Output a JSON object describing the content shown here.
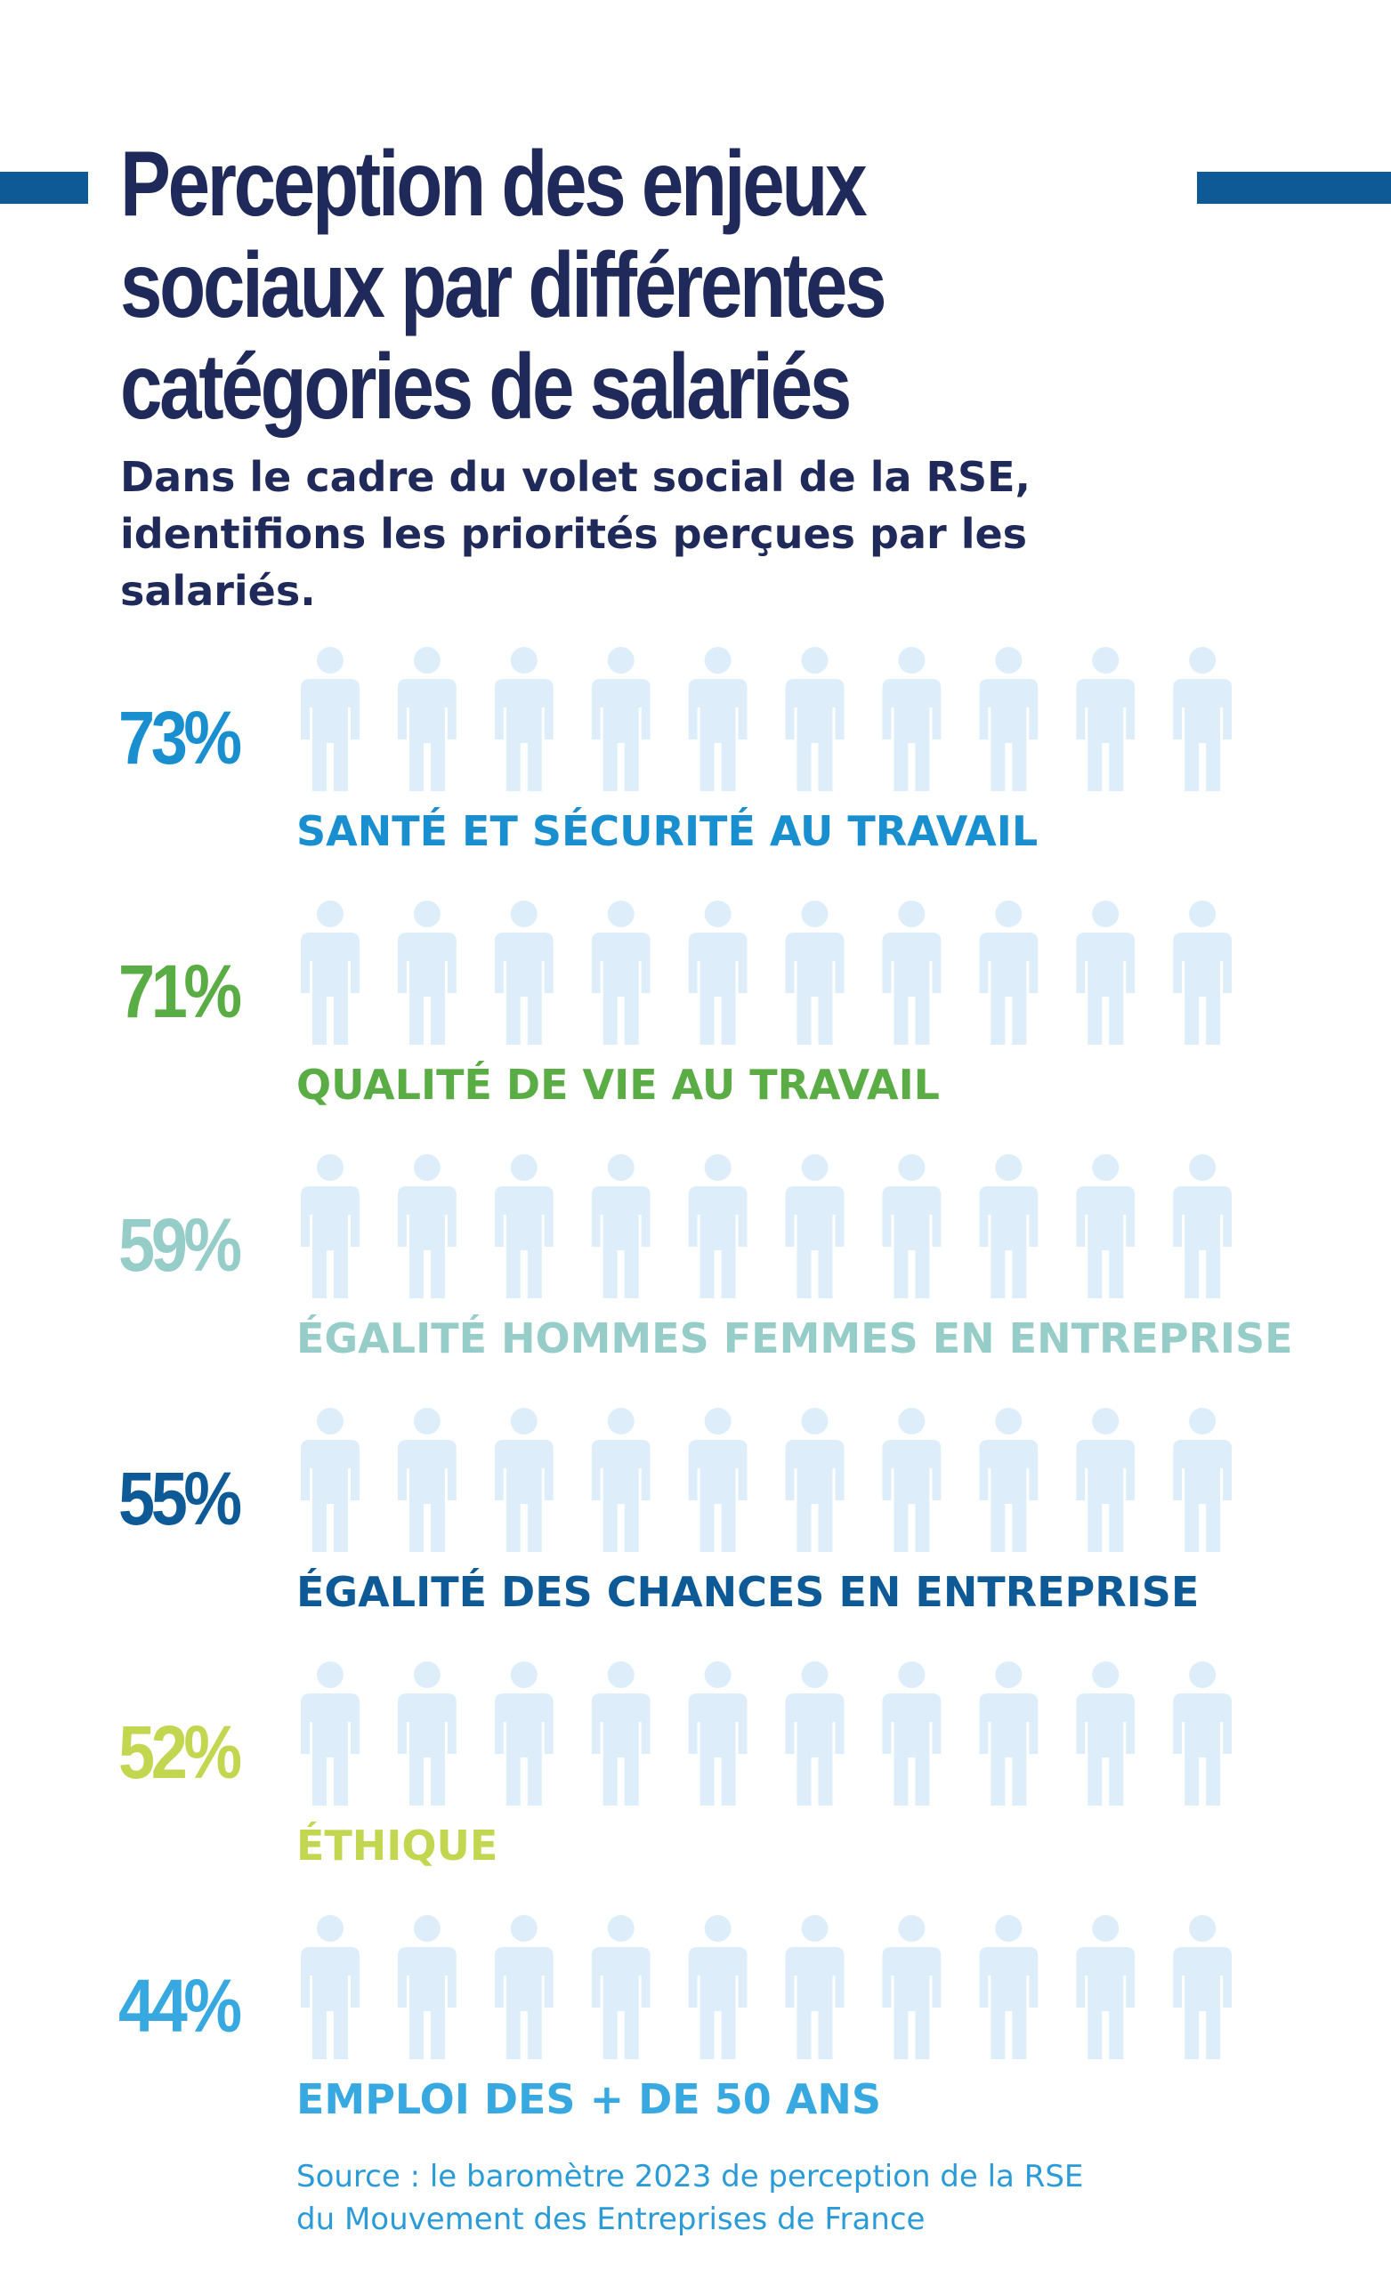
{
  "title": "Perception des enjeux sociaux par différentes catégories de salariés",
  "subtitle": "Dans le cadre du volet social de la RSE, identifions les priorités perçues par les salariés.",
  "source": {
    "line1": "Source : le baromètre 2023 de perception de la RSE",
    "line2": "du Mouvement des Entreprises de France"
  },
  "colors": {
    "accent": "#0d5a96",
    "title": "#1f2a5a",
    "empty_icon": "#ddeefa"
  },
  "chart_data": {
    "type": "pictograph",
    "icon": "person-icon",
    "icons_per_row": 10,
    "series": [
      {
        "label": "SANTÉ ET SÉCURITÉ AU TRAVAIL",
        "percent_label": "73%",
        "value": 73,
        "color": "#1a8fd0"
      },
      {
        "label": "QUALITÉ DE VIE AU TRAVAIL",
        "percent_label": "71%",
        "value": 71,
        "color": "#5aac44"
      },
      {
        "label": "ÉGALITÉ HOMMES FEMMES EN ENTREPRISE",
        "percent_label": "59%",
        "value": 59,
        "color": "#96cdc8"
      },
      {
        "label": "ÉGALITÉ DES CHANCES EN ENTREPRISE",
        "percent_label": "55%",
        "value": 55,
        "color": "#0d5a96"
      },
      {
        "label": "ÉTHIQUE",
        "percent_label": "52%",
        "value": 52,
        "color": "#c3d650"
      },
      {
        "label": "EMPLOI DES + DE 50 ANS",
        "percent_label": "44%",
        "value": 44,
        "color": "#37a9e0"
      }
    ]
  }
}
